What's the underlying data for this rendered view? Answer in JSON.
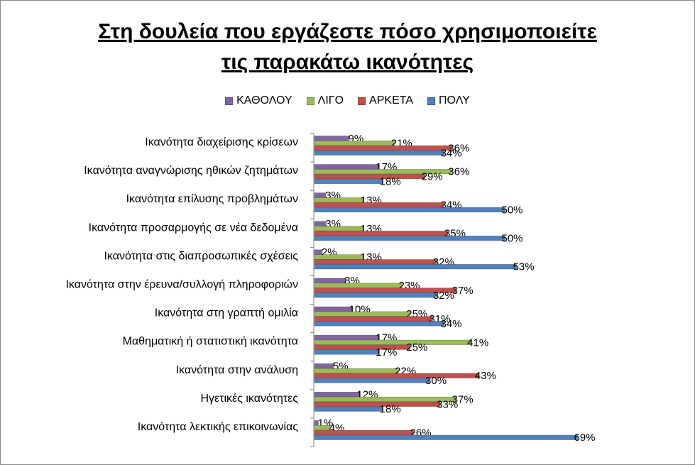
{
  "chart_data": {
    "type": "bar",
    "orientation": "horizontal",
    "title": "Στη δουλεία που εργάζεστε πόσο χρησιμοποιείτε τις παρακάτω ικανότητες",
    "title_lines": [
      "Στη δουλεία που εργάζεστε πόσο χρησιμοποιείτε",
      "τις παρακάτω ικανότητες"
    ],
    "categories": [
      "Ικανότητα διαχείρισης κρίσεων",
      "Ικανότητα αναγνώρισης ηθικών ζητημάτων",
      "Ικανότητα επίλυσης προβλημάτων",
      "Ικανότητα προσαρμογής σε νέα δεδομένα",
      "Ικανότητα στις διαπροσωπικές σχέσεις",
      "Ικανότητα στην έρευνα/συλλογή πληροφοριών",
      "Ικανότητα στη γραπτή ομιλία",
      "Μαθηματική ή στατιστική ικανότητα",
      "Ικανότητα στην ανάλυση",
      "Ηγετικές ικανότητες",
      "Ικανότητα λεκτικής επικοινωνίας"
    ],
    "series": [
      {
        "name": "ΚΑΘΟΛΟΥ",
        "color": "#8064A2",
        "values": [
          9,
          17,
          3,
          3,
          2,
          8,
          10,
          17,
          5,
          12,
          1
        ]
      },
      {
        "name": "ΛΙΓΟ",
        "color": "#9BBB59",
        "values": [
          21,
          36,
          13,
          13,
          13,
          23,
          25,
          41,
          22,
          37,
          4
        ]
      },
      {
        "name": "ΑΡΚΕΤΑ",
        "color": "#C0504D",
        "values": [
          36,
          29,
          34,
          35,
          32,
          37,
          31,
          25,
          43,
          33,
          26
        ]
      },
      {
        "name": "ΠΟΛΥ",
        "color": "#4F81BD",
        "values": [
          34,
          18,
          50,
          50,
          53,
          32,
          34,
          17,
          30,
          18,
          69
        ]
      }
    ],
    "value_suffix": "%",
    "legend_position": "top",
    "xlim": [
      0,
      72
    ],
    "grid": false
  }
}
